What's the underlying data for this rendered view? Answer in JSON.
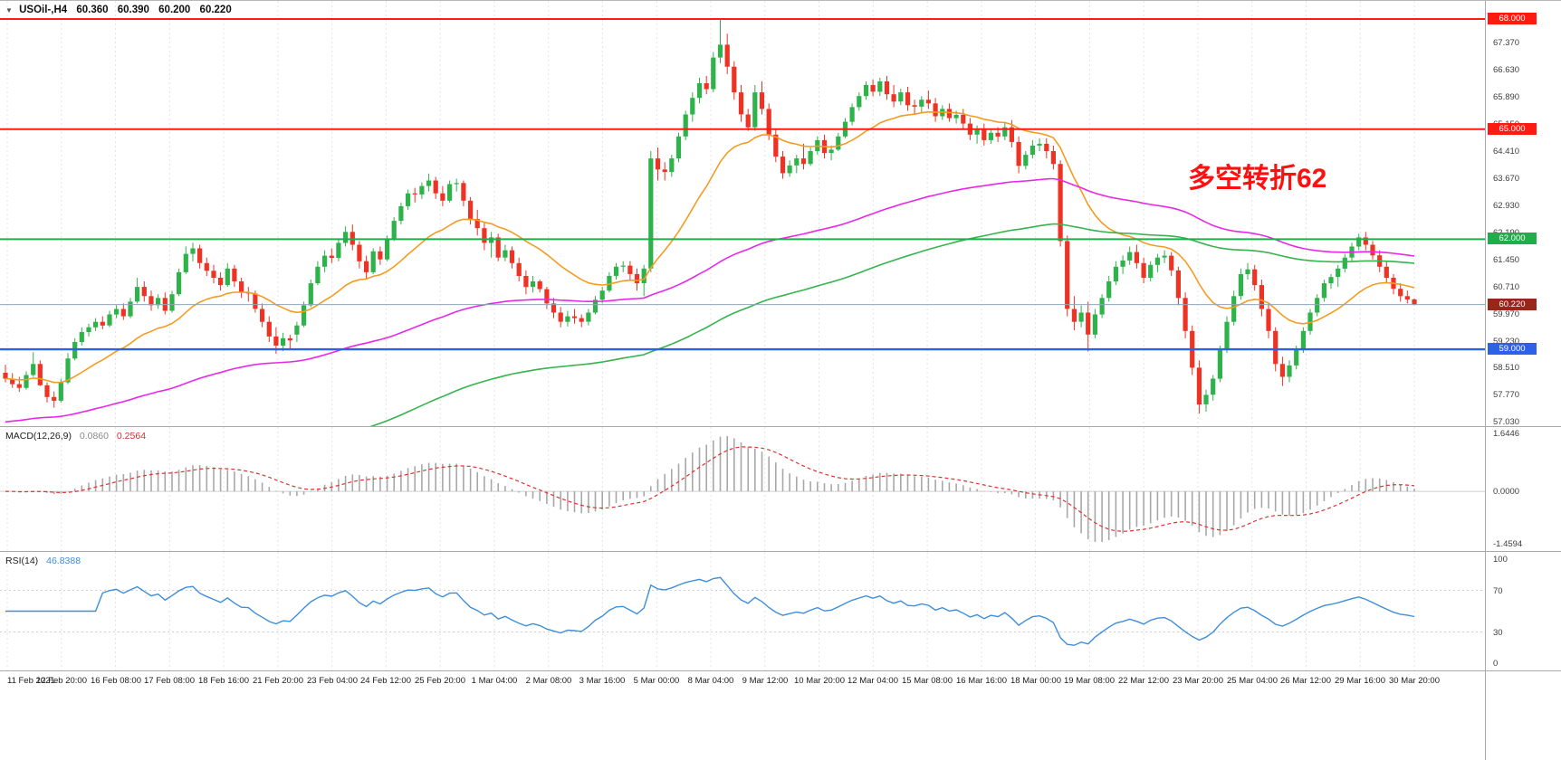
{
  "symbol_bar": {
    "expander_icon": "▼",
    "symbol": "USOil-,H4",
    "open": "60.360",
    "high": "60.390",
    "low": "60.200",
    "close": "60.220"
  },
  "annotation": {
    "text": "多空转折62",
    "color": "#fe1010"
  },
  "macd_panel": {
    "name": "MACD(12,26,9)",
    "value_main": "0.0860",
    "value_signal": "0.2564",
    "axis_max": "1.6446",
    "axis_zero": "0.0000",
    "axis_min": "-1.4594"
  },
  "rsi_panel": {
    "name": "RSI(14)",
    "value": "46.8388",
    "axis_labels": [
      "100",
      "70",
      "30",
      "0"
    ],
    "levels": [
      70,
      30
    ]
  },
  "colors": {
    "bull": "#2eb24a",
    "bear": "#ee3224",
    "ma_fast": "#f49c22",
    "ma_mid": "#e828e8",
    "ma_slow": "#35b44d",
    "price_line": "#90a4b8",
    "price_tag": "#99261c",
    "macd_hist": "#a8a8a8",
    "macd_signal": "#e03131",
    "rsi_line": "#3e8ed9",
    "grid": "#e4e4e4"
  },
  "chart_data": {
    "type": "candlestick",
    "title": "USOil- H4",
    "symbol": "USOil-",
    "timeframe": "H4",
    "last_ohlc": {
      "open": 60.36,
      "high": 60.39,
      "low": 60.2,
      "close": 60.22
    },
    "ylim": [
      57.03,
      68.0
    ],
    "y_ticks": [
      "67.370",
      "66.630",
      "65.890",
      "65.150",
      "64.410",
      "63.670",
      "62.930",
      "62.190",
      "61.450",
      "60.710",
      "59.970",
      "59.230",
      "58.510",
      "57.770",
      "57.030"
    ],
    "x_labels": [
      "11 Feb 2021",
      "12 Feb 20:00",
      "16 Feb 08:00",
      "17 Feb 08:00",
      "18 Feb 16:00",
      "21 Feb 20:00",
      "23 Feb 04:00",
      "24 Feb 12:00",
      "25 Feb 20:00",
      "1 Mar 04:00",
      "2 Mar 08:00",
      "3 Mar 16:00",
      "5 Mar 00:00",
      "8 Mar 04:00",
      "9 Mar 12:00",
      "10 Mar 20:00",
      "12 Mar 04:00",
      "15 Mar 08:00",
      "16 Mar 16:00",
      "18 Mar 00:00",
      "19 Mar 08:00",
      "22 Mar 12:00",
      "23 Mar 20:00",
      "25 Mar 04:00",
      "26 Mar 12:00",
      "29 Mar 16:00",
      "30 Mar 20:00"
    ],
    "hlines": [
      {
        "price": 68.0,
        "label": "68.000",
        "color": "#fd1b12",
        "width": 2
      },
      {
        "price": 65.0,
        "label": "65.000",
        "color": "#fd1b12",
        "width": 2
      },
      {
        "price": 62.0,
        "label": "62.000",
        "color": "#1fae4e",
        "width": 2
      },
      {
        "price": 59.0,
        "label": "59.000",
        "color": "#2b62e8",
        "width": 2.4
      }
    ],
    "current_price": {
      "price": 60.22,
      "label": "60.220"
    },
    "indicators": [
      {
        "type": "MACD",
        "params": [
          12,
          26,
          9
        ],
        "main": 0.086,
        "signal": 0.2564,
        "scale_max": 1.6446,
        "scale_min": -1.4594
      },
      {
        "type": "RSI",
        "params": [
          14
        ],
        "value": 46.8388,
        "scale": [
          0,
          100
        ],
        "levels": [
          30,
          70
        ]
      }
    ],
    "ohlc": [
      [
        58.36,
        58.58,
        58.1,
        58.2
      ],
      [
        58.2,
        58.35,
        57.95,
        58.05
      ],
      [
        58.05,
        58.25,
        57.84,
        57.95
      ],
      [
        57.95,
        58.4,
        57.9,
        58.3
      ],
      [
        58.3,
        58.92,
        58.25,
        58.6
      ],
      [
        58.6,
        58.7,
        58.0,
        58.02
      ],
      [
        58.02,
        58.1,
        57.55,
        57.7
      ],
      [
        57.7,
        57.85,
        57.41,
        57.6
      ],
      [
        57.6,
        58.2,
        57.55,
        58.1
      ],
      [
        58.1,
        58.9,
        58.05,
        58.75
      ],
      [
        58.75,
        59.3,
        58.7,
        59.2
      ],
      [
        59.2,
        59.6,
        59.1,
        59.47
      ],
      [
        59.47,
        59.7,
        59.35,
        59.6
      ],
      [
        59.6,
        59.85,
        59.5,
        59.75
      ],
      [
        59.75,
        59.9,
        59.55,
        59.65
      ],
      [
        59.65,
        60.05,
        59.6,
        59.95
      ],
      [
        59.95,
        60.2,
        59.85,
        60.1
      ],
      [
        60.1,
        60.25,
        59.8,
        59.9
      ],
      [
        59.9,
        60.4,
        59.85,
        60.3
      ],
      [
        60.3,
        60.95,
        60.25,
        60.7
      ],
      [
        60.7,
        60.85,
        60.3,
        60.45
      ],
      [
        60.45,
        60.6,
        60.05,
        60.2
      ],
      [
        60.2,
        60.5,
        60.1,
        60.4
      ],
      [
        60.4,
        60.55,
        59.95,
        60.05
      ],
      [
        60.05,
        60.6,
        60.0,
        60.5
      ],
      [
        60.5,
        61.2,
        60.45,
        61.1
      ],
      [
        61.1,
        61.8,
        61.05,
        61.6
      ],
      [
        61.6,
        61.9,
        61.4,
        61.75
      ],
      [
        61.75,
        61.85,
        61.2,
        61.35
      ],
      [
        61.35,
        61.5,
        61.0,
        61.14
      ],
      [
        61.14,
        61.3,
        60.8,
        60.95
      ],
      [
        60.95,
        61.1,
        60.6,
        60.75
      ],
      [
        60.75,
        61.35,
        60.7,
        61.2
      ],
      [
        61.2,
        61.3,
        60.7,
        60.85
      ],
      [
        60.85,
        60.95,
        60.4,
        60.55
      ],
      [
        60.55,
        60.7,
        60.3,
        60.52
      ],
      [
        60.52,
        60.6,
        60.0,
        60.1
      ],
      [
        60.1,
        60.25,
        59.6,
        59.75
      ],
      [
        59.75,
        59.9,
        59.2,
        59.35
      ],
      [
        59.35,
        59.6,
        58.88,
        59.1
      ],
      [
        59.1,
        59.45,
        58.95,
        59.3
      ],
      [
        59.3,
        59.4,
        59.0,
        59.24
      ],
      [
        59.4,
        59.75,
        59.2,
        59.65
      ],
      [
        59.65,
        60.3,
        59.6,
        60.2
      ],
      [
        60.2,
        60.9,
        60.15,
        60.8
      ],
      [
        60.8,
        61.4,
        60.75,
        61.25
      ],
      [
        61.25,
        61.7,
        61.1,
        61.55
      ],
      [
        61.55,
        61.75,
        61.35,
        61.49
      ],
      [
        61.49,
        62.0,
        61.4,
        61.9
      ],
      [
        61.9,
        62.35,
        61.8,
        62.2
      ],
      [
        62.2,
        62.4,
        61.7,
        61.85
      ],
      [
        61.85,
        61.95,
        61.2,
        61.4
      ],
      [
        61.4,
        61.55,
        60.9,
        61.1
      ],
      [
        61.1,
        61.75,
        61.05,
        61.67
      ],
      [
        61.67,
        61.8,
        61.3,
        61.45
      ],
      [
        61.45,
        62.1,
        61.4,
        62.0
      ],
      [
        62.0,
        62.6,
        61.95,
        62.5
      ],
      [
        62.5,
        63.0,
        62.4,
        62.9
      ],
      [
        62.9,
        63.35,
        62.8,
        63.25
      ],
      [
        63.25,
        63.4,
        63.0,
        63.22
      ],
      [
        63.22,
        63.55,
        63.1,
        63.45
      ],
      [
        63.45,
        63.79,
        63.3,
        63.6
      ],
      [
        63.6,
        63.7,
        63.1,
        63.25
      ],
      [
        63.25,
        63.45,
        62.9,
        63.05
      ],
      [
        63.05,
        63.6,
        63.0,
        63.5
      ],
      [
        63.5,
        63.65,
        63.3,
        63.53
      ],
      [
        63.53,
        63.6,
        62.9,
        63.05
      ],
      [
        63.05,
        63.15,
        62.4,
        62.55
      ],
      [
        62.55,
        62.8,
        62.1,
        62.3
      ],
      [
        62.3,
        62.45,
        61.7,
        61.9
      ],
      [
        61.9,
        62.2,
        61.5,
        62.05
      ],
      [
        62.05,
        62.15,
        61.4,
        61.5
      ],
      [
        61.5,
        61.85,
        61.4,
        61.7
      ],
      [
        61.7,
        61.8,
        61.2,
        61.35
      ],
      [
        61.35,
        61.5,
        60.85,
        61.0
      ],
      [
        61.0,
        61.15,
        60.5,
        60.7
      ],
      [
        60.7,
        61.0,
        60.55,
        60.85
      ],
      [
        60.85,
        60.9,
        60.55,
        60.64
      ],
      [
        60.64,
        60.7,
        60.1,
        60.25
      ],
      [
        60.25,
        60.4,
        59.85,
        60.0
      ],
      [
        60.0,
        60.15,
        59.6,
        59.75
      ],
      [
        59.75,
        60.05,
        59.62,
        59.9
      ],
      [
        59.9,
        60.1,
        59.7,
        59.85
      ],
      [
        59.85,
        59.95,
        59.6,
        59.75
      ],
      [
        59.75,
        60.1,
        59.65,
        60.0
      ],
      [
        60.0,
        60.45,
        59.95,
        60.35
      ],
      [
        60.35,
        60.7,
        60.25,
        60.6
      ],
      [
        60.6,
        61.1,
        60.55,
        61.0
      ],
      [
        61.0,
        61.35,
        60.9,
        61.25
      ],
      [
        61.25,
        61.4,
        61.1,
        61.28
      ],
      [
        61.28,
        61.4,
        60.9,
        61.05
      ],
      [
        61.05,
        61.2,
        60.6,
        60.8
      ],
      [
        60.8,
        61.3,
        60.45,
        61.2
      ],
      [
        61.2,
        64.4,
        61.1,
        64.2
      ],
      [
        64.2,
        64.5,
        63.6,
        63.9
      ],
      [
        63.9,
        64.1,
        63.6,
        63.83
      ],
      [
        63.83,
        64.3,
        63.7,
        64.2
      ],
      [
        64.2,
        64.9,
        64.1,
        64.8
      ],
      [
        64.8,
        65.5,
        64.7,
        65.4
      ],
      [
        65.4,
        66.0,
        65.2,
        65.85
      ],
      [
        65.85,
        66.4,
        65.7,
        66.25
      ],
      [
        66.25,
        66.45,
        65.95,
        66.09
      ],
      [
        66.09,
        67.1,
        66.0,
        66.95
      ],
      [
        66.95,
        67.98,
        66.8,
        67.3
      ],
      [
        67.3,
        67.6,
        66.5,
        66.7
      ],
      [
        66.7,
        66.85,
        65.8,
        66.0
      ],
      [
        66.0,
        66.2,
        65.2,
        65.4
      ],
      [
        65.4,
        65.55,
        64.95,
        65.05
      ],
      [
        65.05,
        66.2,
        64.95,
        66.0
      ],
      [
        66.0,
        66.3,
        65.4,
        65.55
      ],
      [
        65.55,
        65.7,
        64.7,
        64.85
      ],
      [
        64.85,
        65.0,
        64.1,
        64.25
      ],
      [
        64.25,
        64.4,
        63.65,
        63.8
      ],
      [
        63.8,
        64.15,
        63.7,
        64.01
      ],
      [
        64.01,
        64.3,
        63.8,
        64.2
      ],
      [
        64.2,
        64.6,
        63.9,
        64.05
      ],
      [
        64.05,
        64.5,
        64.0,
        64.4
      ],
      [
        64.4,
        64.8,
        64.3,
        64.7
      ],
      [
        64.7,
        64.85,
        64.2,
        64.35
      ],
      [
        64.35,
        64.55,
        64.15,
        64.44
      ],
      [
        64.44,
        64.9,
        64.4,
        64.8
      ],
      [
        64.8,
        65.3,
        64.75,
        65.2
      ],
      [
        65.2,
        65.7,
        65.1,
        65.6
      ],
      [
        65.6,
        66.0,
        65.5,
        65.9
      ],
      [
        65.9,
        66.3,
        65.8,
        66.2
      ],
      [
        66.2,
        66.35,
        65.9,
        66.02
      ],
      [
        66.02,
        66.4,
        65.9,
        66.3
      ],
      [
        66.3,
        66.45,
        65.8,
        65.95
      ],
      [
        65.95,
        66.2,
        65.6,
        65.75
      ],
      [
        65.75,
        66.1,
        65.65,
        66.0
      ],
      [
        66.0,
        66.15,
        65.5,
        65.65
      ],
      [
        65.65,
        65.8,
        65.4,
        65.61
      ],
      [
        65.61,
        65.9,
        65.45,
        65.8
      ],
      [
        65.8,
        66.05,
        65.55,
        65.7
      ],
      [
        65.7,
        65.85,
        65.2,
        65.35
      ],
      [
        65.35,
        65.65,
        65.25,
        65.55
      ],
      [
        65.55,
        65.7,
        65.2,
        65.3
      ],
      [
        65.3,
        65.5,
        65.15,
        65.39
      ],
      [
        65.39,
        65.55,
        65.0,
        65.15
      ],
      [
        65.15,
        65.3,
        64.7,
        64.85
      ],
      [
        64.85,
        65.1,
        64.6,
        65.0
      ],
      [
        65.0,
        65.15,
        64.55,
        64.7
      ],
      [
        64.7,
        65.0,
        64.6,
        64.9
      ],
      [
        64.9,
        65.05,
        64.65,
        64.8
      ],
      [
        64.8,
        65.2,
        64.7,
        65.05
      ],
      [
        65.05,
        65.25,
        64.5,
        64.65
      ],
      [
        64.65,
        64.8,
        63.8,
        64.0
      ],
      [
        64.0,
        64.4,
        63.9,
        64.3
      ],
      [
        64.3,
        64.7,
        64.2,
        64.55
      ],
      [
        64.55,
        64.75,
        64.4,
        64.6
      ],
      [
        64.6,
        64.75,
        64.2,
        64.4
      ],
      [
        64.4,
        64.55,
        63.9,
        64.05
      ],
      [
        64.05,
        64.15,
        61.8,
        61.95
      ],
      [
        61.95,
        62.1,
        59.9,
        60.1
      ],
      [
        60.1,
        60.45,
        59.52,
        59.75
      ],
      [
        59.75,
        60.2,
        59.6,
        60.0
      ],
      [
        60.0,
        60.3,
        58.94,
        59.4
      ],
      [
        59.4,
        60.1,
        59.3,
        59.95
      ],
      [
        59.95,
        60.5,
        59.85,
        60.4
      ],
      [
        60.4,
        61.0,
        60.3,
        60.85
      ],
      [
        60.85,
        61.4,
        60.75,
        61.25
      ],
      [
        61.25,
        61.56,
        61.05,
        61.42
      ],
      [
        61.42,
        61.8,
        61.3,
        61.65
      ],
      [
        61.65,
        61.85,
        61.2,
        61.35
      ],
      [
        61.35,
        61.5,
        60.8,
        60.95
      ],
      [
        60.95,
        61.4,
        60.85,
        61.3
      ],
      [
        61.3,
        61.6,
        61.1,
        61.5
      ],
      [
        61.5,
        61.7,
        61.35,
        61.55
      ],
      [
        61.55,
        61.65,
        61.0,
        61.15
      ],
      [
        61.15,
        61.25,
        60.2,
        60.4
      ],
      [
        60.4,
        60.55,
        59.3,
        59.5
      ],
      [
        59.5,
        59.65,
        58.3,
        58.5
      ],
      [
        58.5,
        58.7,
        57.25,
        57.5
      ],
      [
        57.5,
        57.9,
        57.3,
        57.76
      ],
      [
        57.76,
        58.3,
        57.6,
        58.2
      ],
      [
        58.2,
        59.1,
        58.1,
        59.0
      ],
      [
        59.0,
        59.9,
        58.9,
        59.75
      ],
      [
        59.75,
        60.6,
        59.65,
        60.45
      ],
      [
        60.45,
        61.2,
        60.35,
        61.05
      ],
      [
        61.05,
        61.35,
        60.9,
        61.18
      ],
      [
        61.18,
        61.3,
        60.6,
        60.75
      ],
      [
        60.75,
        60.9,
        59.9,
        60.1
      ],
      [
        60.1,
        60.25,
        59.3,
        59.5
      ],
      [
        59.5,
        59.6,
        58.4,
        58.6
      ],
      [
        58.6,
        58.8,
        58.0,
        58.25
      ],
      [
        58.25,
        58.7,
        58.1,
        58.56
      ],
      [
        58.56,
        59.1,
        58.45,
        59.0
      ],
      [
        59.0,
        59.6,
        58.9,
        59.5
      ],
      [
        59.5,
        60.1,
        59.4,
        60.0
      ],
      [
        60.0,
        60.5,
        59.9,
        60.4
      ],
      [
        60.4,
        60.9,
        60.3,
        60.8
      ],
      [
        60.8,
        61.05,
        60.65,
        60.97
      ],
      [
        60.97,
        61.3,
        60.7,
        61.2
      ],
      [
        61.2,
        61.6,
        61.1,
        61.5
      ],
      [
        61.5,
        61.9,
        61.4,
        61.8
      ],
      [
        61.8,
        62.15,
        61.7,
        62.05
      ],
      [
        62.05,
        62.2,
        61.7,
        61.85
      ],
      [
        61.85,
        61.95,
        61.45,
        61.56
      ],
      [
        61.56,
        61.7,
        61.1,
        61.25
      ],
      [
        61.25,
        61.4,
        60.8,
        60.95
      ],
      [
        60.95,
        61.05,
        60.5,
        60.65
      ],
      [
        60.65,
        60.8,
        60.3,
        60.45
      ],
      [
        60.45,
        60.6,
        60.25,
        60.36
      ],
      [
        60.36,
        60.39,
        60.2,
        60.22
      ]
    ]
  }
}
